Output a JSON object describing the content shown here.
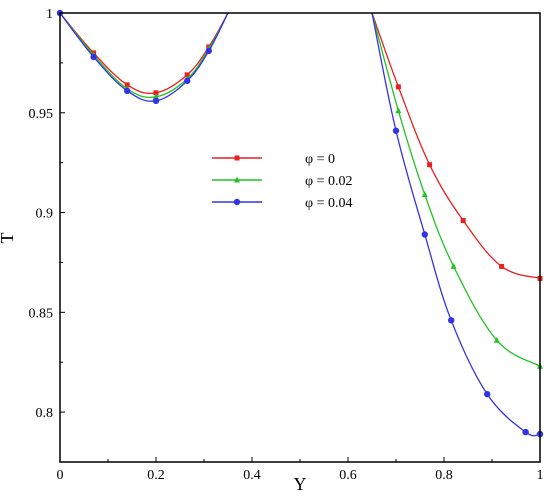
{
  "chart_data": {
    "type": "line",
    "xlabel": "Y",
    "ylabel": "T",
    "xlim": [
      0,
      1
    ],
    "ylim": [
      0.775,
      1.0
    ],
    "xticks": [
      0,
      0.2,
      0.4,
      0.6,
      0.8,
      1
    ],
    "xtick_labels": [
      "0",
      "0.2",
      "0.4",
      "0.6",
      "0.8",
      "1"
    ],
    "yticks": [
      0.8,
      0.85,
      0.9,
      0.95,
      1.0
    ],
    "ytick_labels": [
      "0.8",
      "0.85",
      "0.9",
      "0.95",
      "1"
    ],
    "grid": false,
    "legend_position": "center",
    "series": [
      {
        "name": "φ = 0",
        "color": "#e8201e",
        "marker": "square",
        "values": [
          [
            0.0,
            1.0
          ],
          [
            0.07,
            0.98
          ],
          [
            0.14,
            0.964
          ],
          [
            0.2,
            0.96
          ],
          [
            0.265,
            0.969
          ],
          [
            0.31,
            0.983
          ],
          [
            0.35,
            1.0
          ],
          [
            0.65,
            1.0
          ],
          [
            0.705,
            0.963
          ],
          [
            0.77,
            0.924
          ],
          [
            0.84,
            0.896
          ],
          [
            0.92,
            0.873
          ],
          [
            1.0,
            0.867
          ]
        ]
      },
      {
        "name": "φ = 0.02",
        "color": "#22c322",
        "marker": "triangle",
        "values": [
          [
            0.0,
            1.0
          ],
          [
            0.07,
            0.979
          ],
          [
            0.14,
            0.962
          ],
          [
            0.2,
            0.958
          ],
          [
            0.265,
            0.967
          ],
          [
            0.31,
            0.982
          ],
          [
            0.35,
            1.0
          ],
          [
            0.65,
            1.0
          ],
          [
            0.705,
            0.951
          ],
          [
            0.76,
            0.909
          ],
          [
            0.82,
            0.873
          ],
          [
            0.91,
            0.836
          ],
          [
            1.0,
            0.823
          ]
        ]
      },
      {
        "name": "φ = 0.04",
        "color": "#3333e6",
        "marker": "circle",
        "values": [
          [
            0.0,
            1.0
          ],
          [
            0.07,
            0.978
          ],
          [
            0.14,
            0.961
          ],
          [
            0.2,
            0.956
          ],
          [
            0.265,
            0.966
          ],
          [
            0.31,
            0.981
          ],
          [
            0.35,
            1.0
          ],
          [
            0.65,
            1.0
          ],
          [
            0.7,
            0.941
          ],
          [
            0.76,
            0.889
          ],
          [
            0.815,
            0.846
          ],
          [
            0.89,
            0.809
          ],
          [
            0.97,
            0.79
          ],
          [
            1.0,
            0.789
          ]
        ]
      }
    ]
  }
}
